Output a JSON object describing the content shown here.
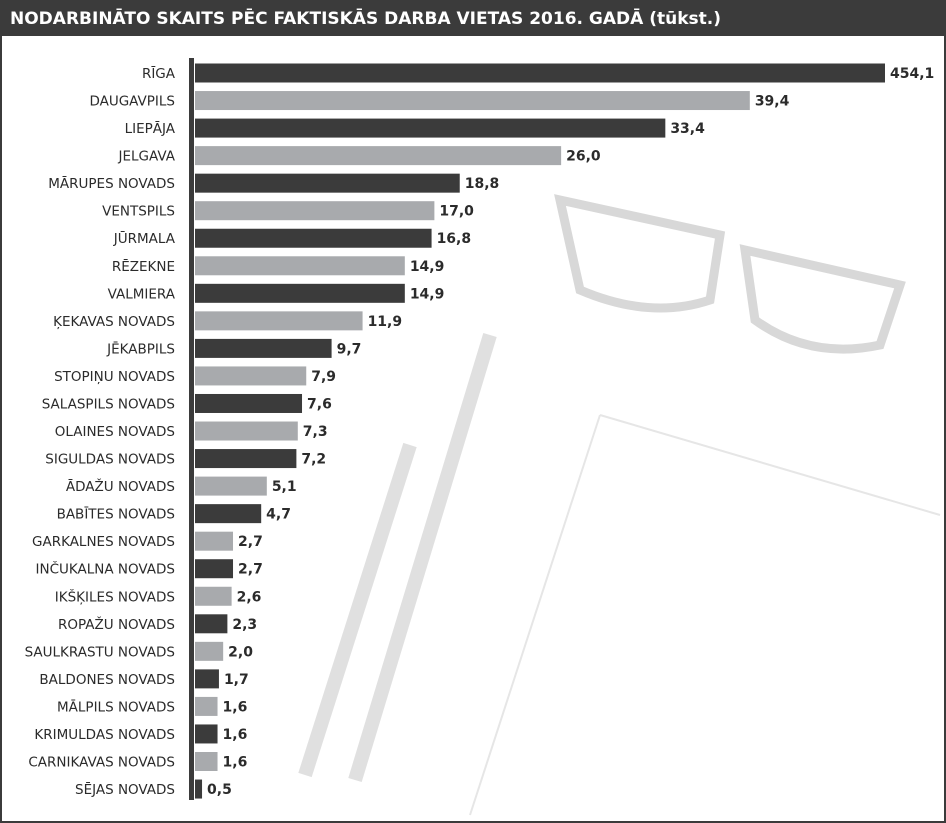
{
  "chart_data": {
    "type": "hbar",
    "title": "NODARBINĀTO SKAITS PĒC FAKTISKĀS DARBA VIETAS 2016. GADĀ (tūkst.)",
    "categories": [
      "RĪGA",
      "DAUGAVPILS",
      "LIEPĀJA",
      "JELGAVA",
      "MĀRUPES NOVADS",
      "VENTSPILS",
      "JŪRMALA",
      "RĒZEKNE",
      "VALMIERA",
      "ĶEKAVAS NOVADS",
      "JĒKABPILS",
      "STOPIŅU NOVADS",
      "SALASPILS NOVADS",
      "OLAINES NOVADS",
      "SIGULDAS NOVADS",
      "ĀDAŽU NOVADS",
      "BABĪTES NOVADS",
      "GARKALNES NOVADS",
      "INČUKALNA NOVADS",
      "IKŠĶILES NOVADS",
      "ROPAŽU NOVADS",
      "SAULKRASTU NOVADS",
      "BALDONES NOVADS",
      "MĀLPILS NOVADS",
      "KRIMULDAS NOVADS",
      "CARNIKAVAS NOVADS",
      "SĒJAS NOVADS"
    ],
    "values": [
      454.1,
      39.4,
      33.4,
      26.0,
      18.8,
      17.0,
      16.8,
      14.9,
      14.9,
      11.9,
      9.7,
      7.9,
      7.6,
      7.3,
      7.2,
      5.1,
      4.7,
      2.7,
      2.7,
      2.6,
      2.3,
      2.0,
      1.7,
      1.6,
      1.6,
      1.6,
      0.5
    ],
    "value_labels": [
      "454,1",
      "39,4",
      "33,4",
      "26,0",
      "18,8",
      "17,0",
      "16,8",
      "14,9",
      "14,9",
      "11,9",
      "9,7",
      "7,9",
      "7,6",
      "7,3",
      "7,2",
      "5,1",
      "4,7",
      "2,7",
      "2,7",
      "2,6",
      "2,3",
      "2,0",
      "1,7",
      "1,6",
      "1,6",
      "1,6",
      "0,5"
    ],
    "bar_colors": [
      "#3b3b3b",
      "#a8aaad"
    ],
    "xlim": [
      0,
      49
    ]
  }
}
